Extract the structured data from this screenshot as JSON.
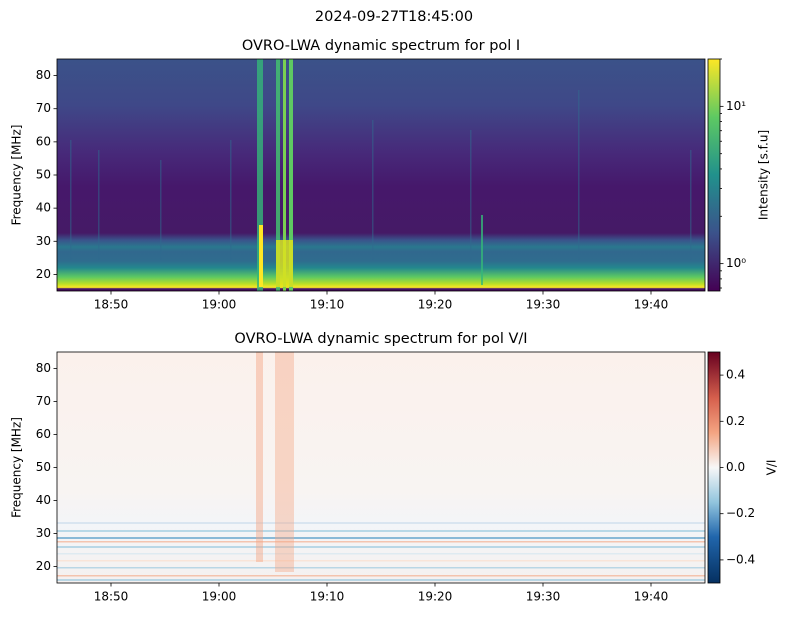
{
  "title": "2024-09-27T18:45:00",
  "chart_data": [
    {
      "type": "heatmap",
      "title": "OVRO-LWA dynamic spectrum for pol I",
      "ylabel": "Frequency [MHz]",
      "xlim": [
        "18:45",
        "19:45"
      ],
      "xticks": [
        "18:50",
        "19:00",
        "19:10",
        "19:20",
        "19:30",
        "19:40"
      ],
      "ylim": [
        15,
        85
      ],
      "yticks": [
        20,
        30,
        40,
        50,
        60,
        70,
        80
      ],
      "colorbar": {
        "label": "Intensity [s.f.u]",
        "scale": "log",
        "colormap": "viridis",
        "lim": [
          0.67,
          20
        ],
        "ticks": [
          {
            "value": 1,
            "label": "10⁰"
          },
          {
            "value": 10,
            "label": "10¹"
          }
        ],
        "minor_ticks": [
          0.7,
          0.8,
          0.9,
          2,
          3,
          4,
          5,
          6,
          7,
          8,
          9,
          20
        ]
      }
    },
    {
      "type": "heatmap",
      "title": "OVRO-LWA dynamic spectrum for pol V/I",
      "ylabel": "Frequency [MHz]",
      "xlim": [
        "18:45",
        "19:45"
      ],
      "xticks": [
        "18:50",
        "19:00",
        "19:10",
        "19:20",
        "19:30",
        "19:40"
      ],
      "ylim": [
        15,
        85
      ],
      "yticks": [
        20,
        30,
        40,
        50,
        60,
        70,
        80
      ],
      "colorbar": {
        "label": "V/I",
        "scale": "linear",
        "colormap": "RdBu_r",
        "lim": [
          -0.5,
          0.5
        ],
        "ticks": [
          {
            "value": -0.4,
            "label": "−0.4"
          },
          {
            "value": -0.2,
            "label": "−0.2"
          },
          {
            "value": 0,
            "label": "0.0"
          },
          0.2,
          0.4
        ],
        "minor_ticks": []
      }
    }
  ]
}
